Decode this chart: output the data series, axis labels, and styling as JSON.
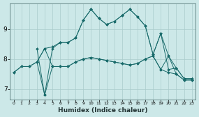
{
  "background_color": "#cce8e8",
  "grid_color": "#aacccc",
  "line_color": "#1a6b6b",
  "xlabel": "Humidex (Indice chaleur)",
  "yticks": [
    7,
    8,
    9
  ],
  "xtick_labels": [
    "0",
    "1",
    "2",
    "3",
    "4",
    "5",
    "6",
    "7",
    "8",
    "9",
    "10",
    "11",
    "12",
    "13",
    "14",
    "15",
    "16",
    "17",
    "18",
    "19",
    "20",
    "21",
    "22",
    "23"
  ],
  "xlim": [
    -0.5,
    23.5
  ],
  "ylim": [
    6.65,
    9.85
  ],
  "lines": [
    {
      "x": [
        0,
        1,
        2,
        3,
        4,
        5,
        6,
        7,
        8,
        9,
        10,
        11,
        12,
        13,
        14,
        15,
        16,
        17,
        18,
        19,
        20,
        21,
        22,
        23
      ],
      "y": [
        7.55,
        7.75,
        7.75,
        7.9,
        8.35,
        8.4,
        8.55,
        8.55,
        8.7,
        9.3,
        9.65,
        9.35,
        9.15,
        9.25,
        9.45,
        9.65,
        9.4,
        9.1,
        8.15,
        8.85,
        8.1,
        7.7,
        7.35,
        7.35
      ]
    },
    {
      "x": [
        0,
        1,
        2,
        3,
        4,
        5,
        6,
        7,
        8,
        9,
        10,
        11,
        12,
        13,
        14,
        15,
        16,
        17,
        18,
        19,
        20,
        21,
        22,
        23
      ],
      "y": [
        7.55,
        7.75,
        7.75,
        7.9,
        8.35,
        7.75,
        7.75,
        7.75,
        7.9,
        8.0,
        8.05,
        8.0,
        7.95,
        7.9,
        7.85,
        7.8,
        7.85,
        8.0,
        8.1,
        7.65,
        7.55,
        7.5,
        7.3,
        7.3
      ]
    },
    {
      "x": [
        3,
        4,
        5,
        6,
        7,
        8,
        9,
        10,
        11,
        12,
        13,
        14,
        15,
        16,
        17,
        18,
        19,
        20,
        21,
        22,
        23
      ],
      "y": [
        8.35,
        6.8,
        8.35,
        8.55,
        8.55,
        8.7,
        9.3,
        9.65,
        9.35,
        9.15,
        9.25,
        9.45,
        9.65,
        9.4,
        9.1,
        8.15,
        8.85,
        7.65,
        7.7,
        7.35,
        7.35
      ]
    },
    {
      "x": [
        3,
        4,
        5,
        6,
        7,
        8,
        9,
        10,
        11,
        12,
        13,
        14,
        15,
        16,
        17,
        18,
        19,
        20,
        21,
        22,
        23
      ],
      "y": [
        7.9,
        6.8,
        7.75,
        7.75,
        7.75,
        7.9,
        8.0,
        8.05,
        8.0,
        7.95,
        7.9,
        7.85,
        7.8,
        7.85,
        8.0,
        8.1,
        7.65,
        8.1,
        7.5,
        7.3,
        7.3
      ]
    }
  ]
}
